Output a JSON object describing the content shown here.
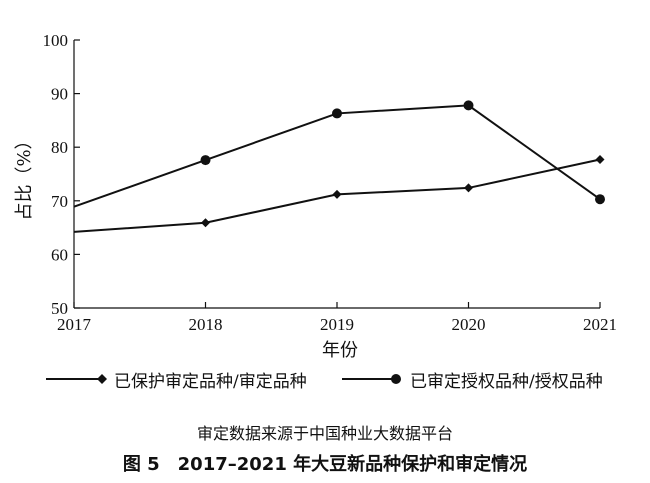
{
  "chart_data": {
    "type": "line",
    "x": [
      "2017",
      "2018",
      "2019",
      "2020",
      "2021"
    ],
    "series": [
      {
        "name": "已保护审定品种/审定品种",
        "marker": "diamond",
        "values": [
          64.2,
          65.9,
          71.2,
          72.4,
          77.7
        ]
      },
      {
        "name": "已审定授权品种/授权品种",
        "marker": "circle",
        "values": [
          68.9,
          77.6,
          86.3,
          87.8,
          70.3
        ]
      }
    ],
    "yticks": [
      "50",
      "60",
      "70",
      "80",
      "90",
      "100"
    ],
    "ylim": [
      50,
      100
    ],
    "xlabel": "年份",
    "ylabel": "占比（%）",
    "grid": false,
    "legend_position": "bottom",
    "line_color": "#111111"
  },
  "source_note": "审定数据来源于中国种业大数据平台",
  "caption": "图 5　2017–2021 年大豆新品种保护和审定情况"
}
